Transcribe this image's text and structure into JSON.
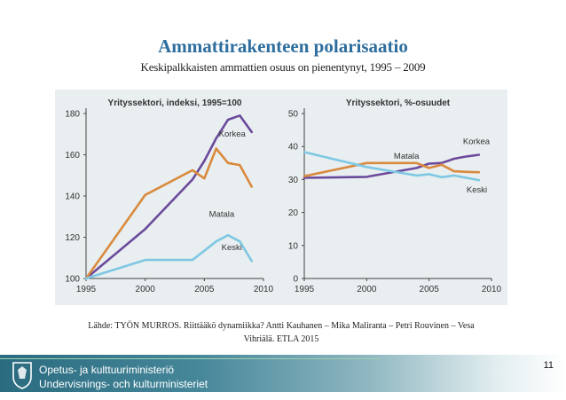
{
  "slide": {
    "title": "Ammattirakenteen polarisaatio",
    "subtitle": "Keskipalkkaisten ammattien osuus on pienentynyt, 1995 – 2009",
    "source_line1": "Lähde: TYÖN MURROS. Riittääkö dynamiikka? Antti Kauhanen – Mika Maliranta – Petri Rouvinen – Vesa",
    "source_line2": "Vihriälä. ETLA 2015",
    "footer_line1": "Opetus- ja kulttuuriministeriö",
    "footer_line2": "Undervisnings- och kulturministeriet",
    "page_number": "11"
  },
  "chart_data": [
    {
      "type": "line",
      "title": "Yrityssektori, indeksi, 1995=100",
      "xlim": [
        1995,
        2010
      ],
      "ylim": [
        100,
        180
      ],
      "xticks": [
        1995,
        2000,
        2005,
        2010
      ],
      "yticks": [
        100,
        120,
        140,
        160,
        180
      ],
      "grid": false,
      "series": [
        {
          "name": "Korkea",
          "color": "#6b4a9b",
          "x": [
            1995,
            2000,
            2004,
            2005,
            2006,
            2007,
            2008,
            2009
          ],
          "y": [
            100,
            124,
            148,
            157,
            168,
            177,
            179,
            171
          ]
        },
        {
          "name": "Matala",
          "color": "#d98a3d",
          "x": [
            1995,
            2000,
            2004,
            2005,
            2006,
            2007,
            2008,
            2009
          ],
          "y": [
            100,
            140.5,
            152.5,
            148.5,
            163,
            156,
            155,
            144.5
          ]
        },
        {
          "name": "Keski",
          "color": "#7ec8e3",
          "x": [
            1995,
            2000,
            2004,
            2006,
            2007,
            2008,
            2009
          ],
          "y": [
            100,
            109,
            109,
            118,
            121,
            118,
            108.5
          ]
        }
      ]
    },
    {
      "type": "line",
      "title": "Yrityssektori, %-osuudet",
      "xlim": [
        1995,
        2010
      ],
      "ylim": [
        0,
        50
      ],
      "xticks": [
        1995,
        2000,
        2005,
        2010
      ],
      "yticks": [
        0,
        10,
        20,
        30,
        40,
        50
      ],
      "grid": false,
      "series": [
        {
          "name": "Korkea",
          "color": "#6b4a9b",
          "x": [
            1995,
            2000,
            2004,
            2005,
            2006,
            2007,
            2008,
            2009
          ],
          "y": [
            30.5,
            30.8,
            33.5,
            34.8,
            35,
            36.3,
            37,
            37.5
          ]
        },
        {
          "name": "Matala",
          "color": "#d98a3d",
          "x": [
            1995,
            2000,
            2004,
            2005,
            2006,
            2007,
            2008,
            2009
          ],
          "y": [
            31,
            35,
            35,
            33.5,
            34.5,
            32.5,
            32.3,
            32.2
          ]
        },
        {
          "name": "Keski",
          "color": "#7ec8e3",
          "x": [
            1995,
            2000,
            2004,
            2005,
            2006,
            2007,
            2008,
            2009
          ],
          "y": [
            38.3,
            33.8,
            31.2,
            31.6,
            30.7,
            31.2,
            30.5,
            29.8
          ]
        }
      ]
    }
  ]
}
